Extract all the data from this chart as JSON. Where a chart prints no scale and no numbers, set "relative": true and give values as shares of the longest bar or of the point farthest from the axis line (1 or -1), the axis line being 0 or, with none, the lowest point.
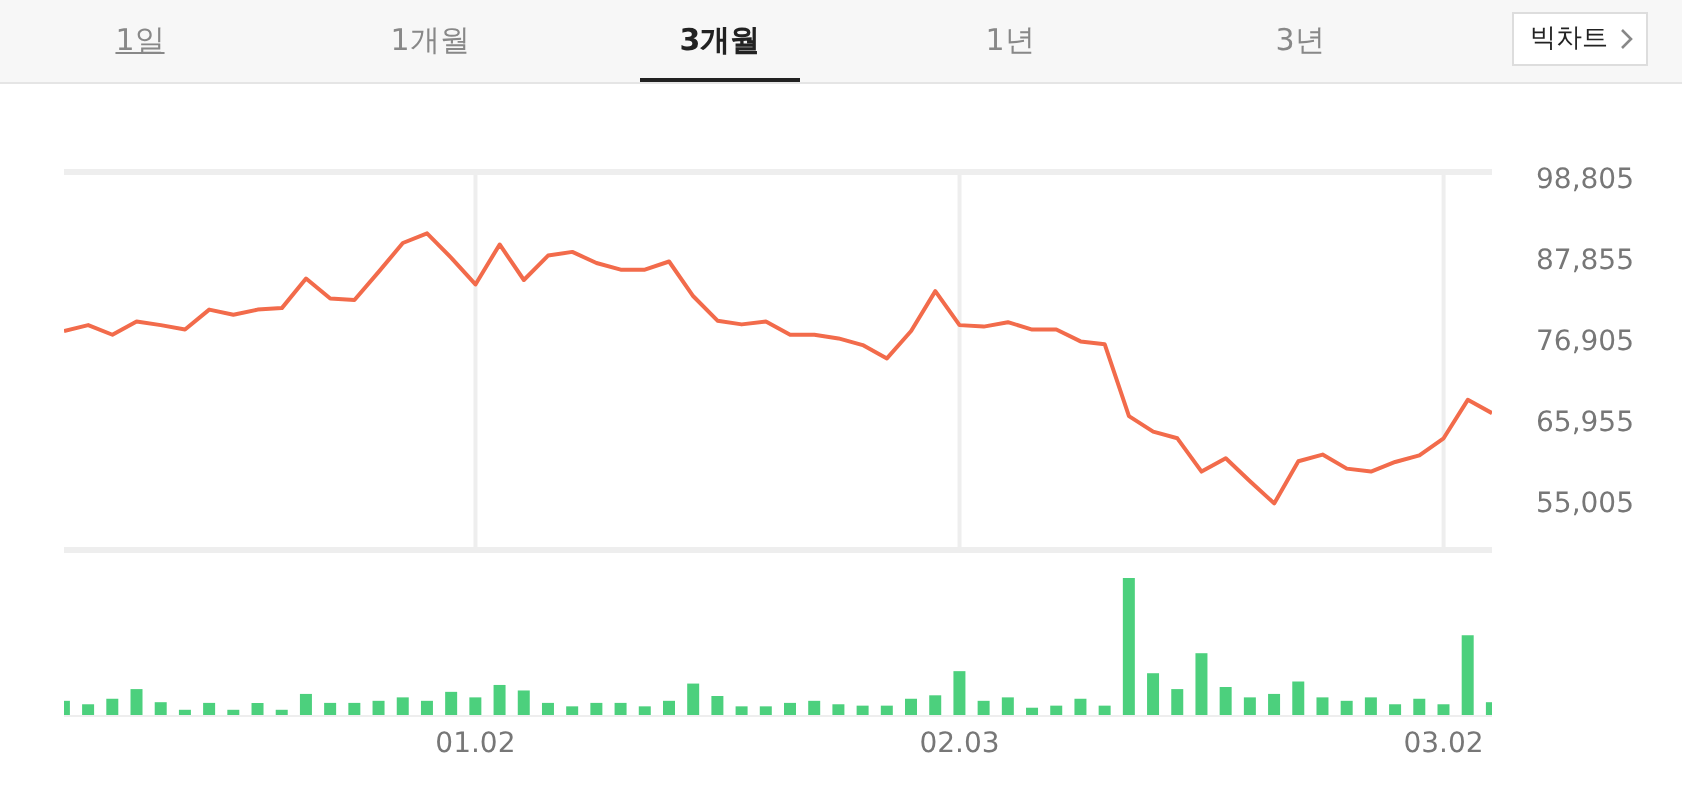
{
  "chart_data": [
    {
      "type": "line",
      "annotations": [
        "1일",
        "1개월",
        "3개월",
        "1년",
        "3년",
        "빅차트"
      ],
      "categories": [
        null,
        null,
        null,
        null,
        null,
        null,
        null,
        null,
        null,
        null,
        null,
        null,
        null,
        null,
        null,
        null,
        null,
        "01.02",
        null,
        null,
        null,
        null,
        null,
        null,
        null,
        null,
        null,
        null,
        null,
        null,
        null,
        null,
        null,
        null,
        null,
        null,
        null,
        "02.03",
        null,
        null,
        null,
        null,
        null,
        null,
        null,
        null,
        null,
        null,
        null,
        null,
        null,
        null,
        null,
        null,
        null,
        null,
        null,
        "03.02",
        null,
        null
      ],
      "series": [
        {
          "color": "#f26b4b",
          "values": [
            78100,
            78900,
            77600,
            79400,
            78900,
            78300,
            81000,
            80300,
            81000,
            81200,
            85200,
            82500,
            82300,
            86100,
            90000,
            91300,
            88000,
            84400,
            89800,
            85000,
            88300,
            88800,
            87300,
            86400,
            86400,
            87500,
            82800,
            79500,
            79000,
            79400,
            77600,
            77600,
            77100,
            76200,
            74400,
            78100,
            83500,
            78900,
            78700,
            79300,
            78300,
            78300,
            76700,
            76300,
            66600,
            64500,
            63600,
            59100,
            60900,
            57800,
            54800,
            60500,
            61400,
            59500,
            59100,
            60400,
            61300,
            63600,
            68800,
            67000
          ]
        }
      ],
      "ylim": [
        48500,
        99600
      ],
      "yticks": [
        {
          "value": 55005,
          "label": "55,005"
        },
        {
          "value": 65955,
          "label": "65,955"
        },
        {
          "value": 76905,
          "label": "76,905"
        },
        {
          "value": 87855,
          "label": "87,855"
        },
        {
          "value": 98805,
          "label": "98,805"
        }
      ],
      "grid": "x",
      "tick_labels": "y",
      "marker": "none",
      "line_style": "solid"
    },
    {
      "type": "bar",
      "relative": true,
      "categories": [
        null,
        null,
        null,
        null,
        null,
        null,
        null,
        null,
        null,
        null,
        null,
        null,
        null,
        null,
        null,
        null,
        null,
        "01.02",
        null,
        null,
        null,
        null,
        null,
        null,
        null,
        null,
        null,
        null,
        null,
        null,
        null,
        null,
        null,
        null,
        null,
        null,
        null,
        "02.03",
        null,
        null,
        null,
        null,
        null,
        null,
        null,
        null,
        null,
        null,
        null,
        null,
        null,
        null,
        null,
        null,
        null,
        null,
        null,
        "03.02",
        null,
        null
      ],
      "series": [
        {
          "color": "#4cd07d",
          "values": [
            0.11,
            0.085,
            0.125,
            0.195,
            0.1,
            0.045,
            0.095,
            0.045,
            0.095,
            0.045,
            0.16,
            0.095,
            0.095,
            0.11,
            0.135,
            0.11,
            0.175,
            0.135,
            0.225,
            0.185,
            0.095,
            0.07,
            0.095,
            0.095,
            0.07,
            0.11,
            0.235,
            0.145,
            0.07,
            0.07,
            0.095,
            0.11,
            0.085,
            0.075,
            0.075,
            0.125,
            0.15,
            0.325,
            0.11,
            0.135,
            0.06,
            0.075,
            0.125,
            0.075,
            1,
            0.31,
            0.195,
            0.455,
            0.21,
            0.135,
            0.16,
            0.25,
            0.135,
            0.11,
            0.135,
            0.085,
            0.125,
            0.085,
            0.585,
            0.1
          ]
        }
      ],
      "grid": false,
      "tick_labels": "x"
    }
  ]
}
